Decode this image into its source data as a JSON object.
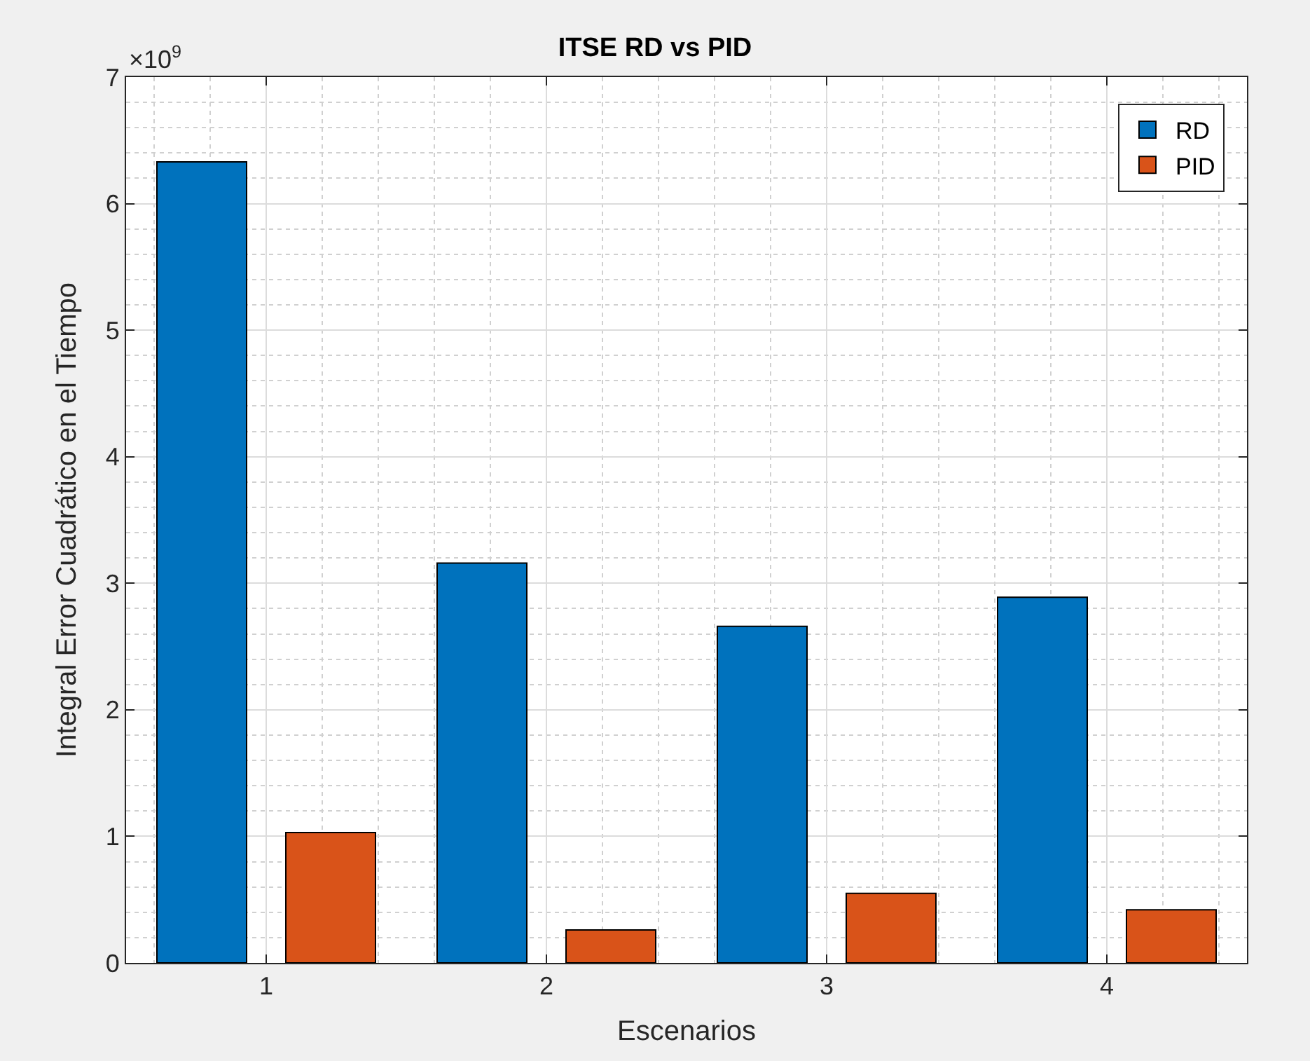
{
  "chart_data": {
    "type": "bar",
    "title": "ITSE RD vs PID",
    "xlabel": "Escenarios",
    "ylabel": "Integral Error Cuadrático en el Tiempo",
    "x": [
      1,
      2,
      3,
      4
    ],
    "xlim": [
      0.5,
      4.5
    ],
    "xticks": [
      1,
      2,
      3,
      4
    ],
    "ylim": [
      0,
      7
    ],
    "yticks": [
      0,
      1,
      2,
      3,
      4,
      5,
      6,
      7
    ],
    "series": [
      {
        "name": "RD",
        "color": "#0072bd",
        "values": [
          6.33,
          3.16,
          2.66,
          2.89
        ]
      },
      {
        "name": "PID",
        "color": "#d95319",
        "values": [
          1.03,
          0.26,
          0.55,
          0.42
        ]
      }
    ],
    "annotations": [
      "×10$^{9}$"
    ],
    "grid": true,
    "legend": "top right"
  }
}
